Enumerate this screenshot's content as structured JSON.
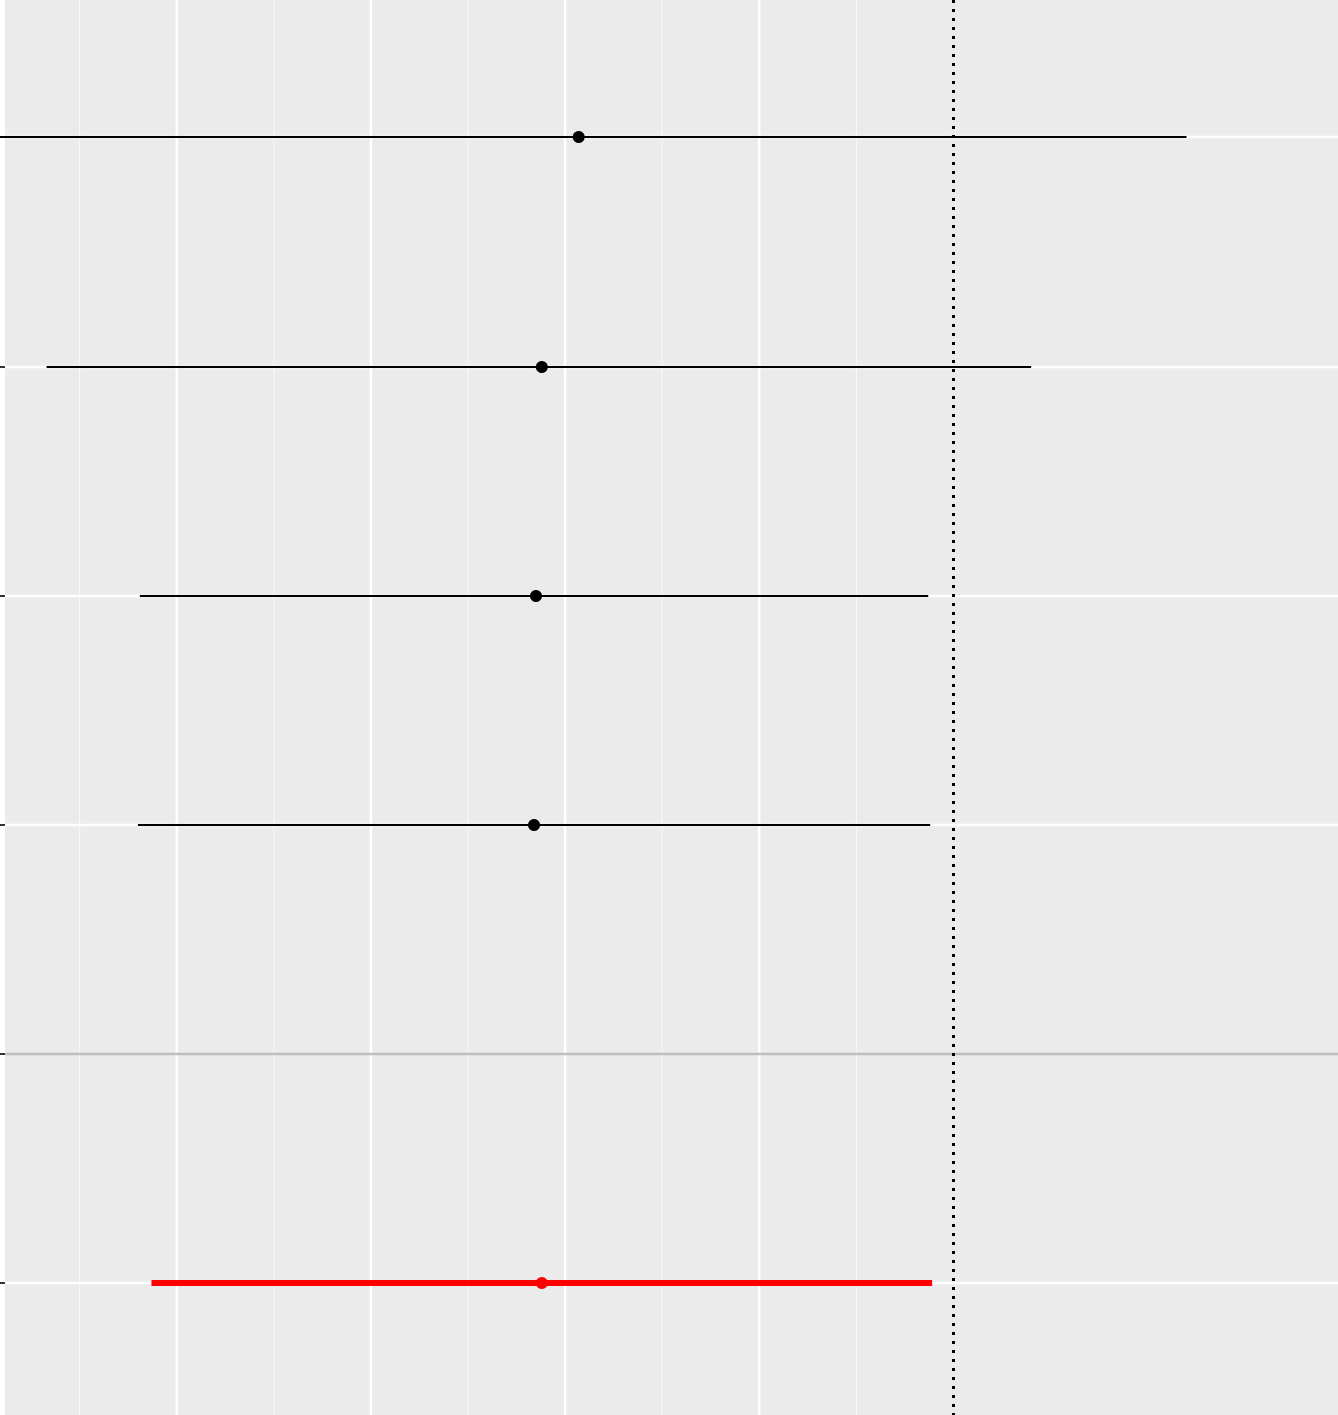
{
  "chart_data": {
    "type": "forest",
    "x": {
      "major_ticks": [
        -2,
        -1,
        0,
        1
      ],
      "minor_ticks": [
        -2.5,
        -1.5,
        -0.5,
        0.5,
        1.5
      ],
      "xlim": [
        -2.91,
        3.98
      ],
      "reference_line": 2
    },
    "rows": [
      {
        "estimate": 0.07,
        "lower": -3.1,
        "upper": 3.2
      },
      {
        "estimate": -0.12,
        "lower": -2.67,
        "upper": 2.4
      },
      {
        "estimate": -0.15,
        "lower": -2.19,
        "upper": 1.87
      },
      {
        "estimate": -0.16,
        "lower": -2.2,
        "upper": 1.88
      }
    ],
    "summary": {
      "estimate": -0.12,
      "lower": -2.13,
      "upper": 1.89
    },
    "colors": {
      "panel_background": "#ebebeb",
      "grid": "#ffffff",
      "separator": "#bebebe",
      "points": "#000000",
      "summary": "#ff0000"
    },
    "grid": true
  }
}
